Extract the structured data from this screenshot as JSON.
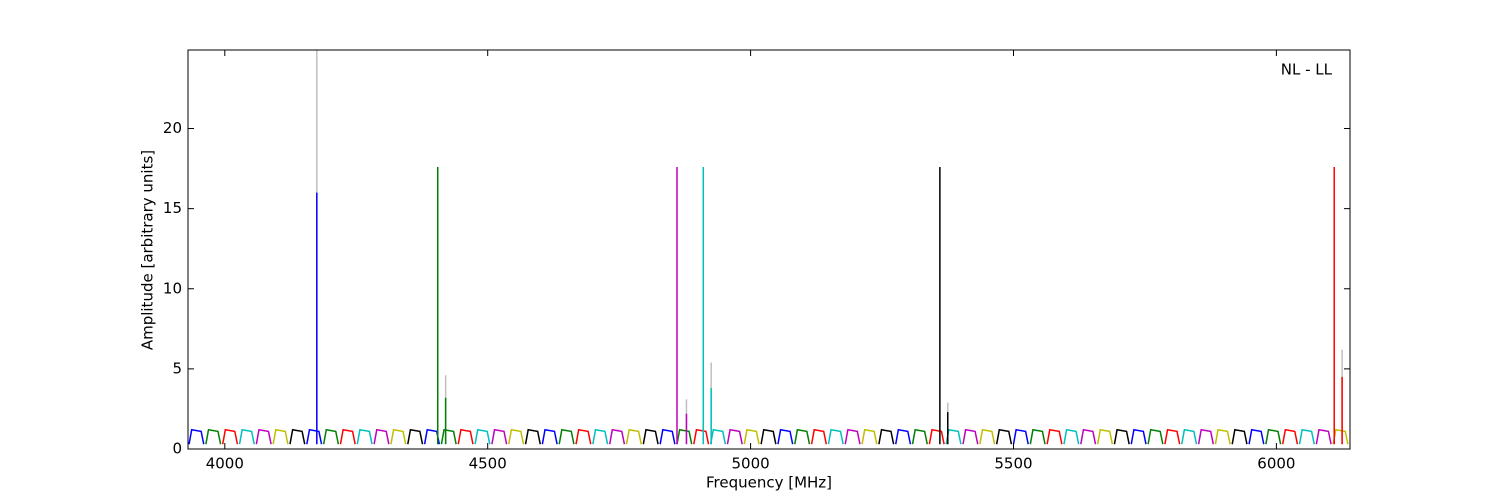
{
  "chart_data": {
    "type": "line",
    "xlabel": "Frequency [MHz]",
    "ylabel": "Amplitude [arbitrary units]",
    "annotation": "NL - LL",
    "xlim": [
      3930,
      6140
    ],
    "ylim": [
      0,
      24.9
    ],
    "xticks": [
      4000,
      4500,
      5000,
      5500,
      6000
    ],
    "yticks": [
      0,
      5,
      10,
      15,
      20
    ],
    "series": [
      {
        "color": "#bfbfbf",
        "x": [
          4175,
          4175
        ],
        "values": [
          0.3,
          24.9
        ]
      },
      {
        "color": "#bfbfbf",
        "x": [
          4420,
          4420
        ],
        "values": [
          0.3,
          4.6
        ]
      },
      {
        "color": "#bfbfbf",
        "x": [
          4878,
          4878
        ],
        "values": [
          0.3,
          3.1
        ]
      },
      {
        "color": "#bfbfbf",
        "x": [
          4925,
          4925
        ],
        "values": [
          0.3,
          5.4
        ]
      },
      {
        "color": "#bfbfbf",
        "x": [
          5375,
          5375
        ],
        "values": [
          0.3,
          2.9
        ]
      },
      {
        "color": "#bfbfbf",
        "x": [
          6125,
          6125
        ],
        "values": [
          0.3,
          6.2
        ]
      },
      {
        "color": "#0000ff",
        "x": [
          3932,
          3937,
          3955,
          3960,
          3961,
          4156,
          4161,
          4179,
          4184,
          4185,
          4380,
          4385,
          4403,
          4408,
          4409,
          4604,
          4609,
          4627,
          4632,
          4633,
          4828,
          4833,
          4851,
          4856,
          4857,
          5052,
          5057,
          5075,
          5080,
          5081,
          5276,
          5281,
          5299,
          5304,
          5305,
          5500,
          5505,
          5523,
          5528,
          5529,
          5724,
          5729,
          5747,
          5752,
          5753,
          5948,
          5953,
          5971,
          5976,
          5977
        ],
        "values": [
          0.3,
          1.2,
          1.1,
          0.3,
          null,
          0.3,
          1.2,
          1.1,
          0.3,
          null,
          0.3,
          1.2,
          1.1,
          0.3,
          null,
          0.3,
          1.2,
          1.1,
          0.3,
          null,
          0.3,
          1.2,
          1.1,
          0.3,
          null,
          0.3,
          1.2,
          1.1,
          0.3,
          null,
          0.3,
          1.2,
          1.1,
          0.3,
          null,
          0.3,
          1.2,
          1.1,
          0.3,
          null,
          0.3,
          1.2,
          1.1,
          0.3,
          null,
          0.3,
          1.2,
          1.1,
          0.3,
          null
        ]
      },
      {
        "color": "#008000",
        "x": [
          3964,
          3969,
          3987,
          3992,
          3993,
          4188,
          4193,
          4211,
          4216,
          4217,
          4412,
          4417,
          4435,
          4440,
          4441,
          4636,
          4641,
          4659,
          4664,
          4665,
          4860,
          4865,
          4883,
          4888,
          4889,
          5084,
          5089,
          5107,
          5112,
          5113,
          5308,
          5313,
          5331,
          5336,
          5337,
          5532,
          5537,
          5555,
          5560,
          5561,
          5756,
          5761,
          5779,
          5784,
          5785,
          5980,
          5985,
          6003,
          6008,
          6009
        ],
        "values": [
          0.3,
          1.2,
          1.1,
          0.3,
          null,
          0.3,
          1.2,
          1.1,
          0.3,
          null,
          0.3,
          1.2,
          1.1,
          0.3,
          null,
          0.3,
          1.2,
          1.1,
          0.3,
          null,
          0.3,
          1.2,
          1.1,
          0.3,
          null,
          0.3,
          1.2,
          1.1,
          0.3,
          null,
          0.3,
          1.2,
          1.1,
          0.3,
          null,
          0.3,
          1.2,
          1.1,
          0.3,
          null,
          0.3,
          1.2,
          1.1,
          0.3,
          null,
          0.3,
          1.2,
          1.1,
          0.3,
          null
        ]
      },
      {
        "color": "#ff0000",
        "x": [
          3996,
          4001,
          4019,
          4024,
          4025,
          4220,
          4225,
          4243,
          4248,
          4249,
          4444,
          4449,
          4467,
          4472,
          4473,
          4668,
          4673,
          4691,
          4696,
          4697,
          4892,
          4897,
          4915,
          4920,
          4921,
          5116,
          5121,
          5139,
          5144,
          5145,
          5340,
          5345,
          5363,
          5368,
          5369,
          5564,
          5569,
          5587,
          5592,
          5593,
          5788,
          5793,
          5811,
          5816,
          5817,
          6012,
          6017,
          6035,
          6040,
          6041
        ],
        "values": [
          0.3,
          1.2,
          1.1,
          0.3,
          null,
          0.3,
          1.2,
          1.1,
          0.3,
          null,
          0.3,
          1.2,
          1.1,
          0.3,
          null,
          0.3,
          1.2,
          1.1,
          0.3,
          null,
          0.3,
          1.2,
          1.1,
          0.3,
          null,
          0.3,
          1.2,
          1.1,
          0.3,
          null,
          0.3,
          1.2,
          1.1,
          0.3,
          null,
          0.3,
          1.2,
          1.1,
          0.3,
          null,
          0.3,
          1.2,
          1.1,
          0.3,
          null,
          0.3,
          1.2,
          1.1,
          0.3,
          null
        ]
      },
      {
        "color": "#00bfbf",
        "x": [
          4028,
          4033,
          4051,
          4056,
          4057,
          4252,
          4257,
          4275,
          4280,
          4281,
          4476,
          4481,
          4499,
          4504,
          4505,
          4700,
          4705,
          4723,
          4728,
          4729,
          4924,
          4929,
          4947,
          4952,
          4953,
          5148,
          5153,
          5171,
          5176,
          5177,
          5372,
          5377,
          5395,
          5400,
          5401,
          5596,
          5601,
          5619,
          5624,
          5625,
          5820,
          5825,
          5843,
          5848,
          5849,
          6044,
          6049,
          6067,
          6072,
          6073
        ],
        "values": [
          0.3,
          1.2,
          1.1,
          0.3,
          null,
          0.3,
          1.2,
          1.1,
          0.3,
          null,
          0.3,
          1.2,
          1.1,
          0.3,
          null,
          0.3,
          1.2,
          1.1,
          0.3,
          null,
          0.3,
          1.2,
          1.1,
          0.3,
          null,
          0.3,
          1.2,
          1.1,
          0.3,
          null,
          0.3,
          1.2,
          1.1,
          0.3,
          null,
          0.3,
          1.2,
          1.1,
          0.3,
          null,
          0.3,
          1.2,
          1.1,
          0.3,
          null,
          0.3,
          1.2,
          1.1,
          0.3,
          null
        ]
      },
      {
        "color": "#bf00bf",
        "x": [
          4060,
          4065,
          4083,
          4088,
          4089,
          4284,
          4289,
          4307,
          4312,
          4313,
          4508,
          4513,
          4531,
          4536,
          4537,
          4732,
          4737,
          4755,
          4760,
          4761,
          4956,
          4961,
          4979,
          4984,
          4985,
          5180,
          5185,
          5203,
          5208,
          5209,
          5404,
          5409,
          5427,
          5432,
          5433,
          5628,
          5633,
          5651,
          5656,
          5657,
          5852,
          5857,
          5875,
          5880,
          5881,
          6076,
          6081,
          6099,
          6104,
          6105
        ],
        "values": [
          0.3,
          1.2,
          1.1,
          0.3,
          null,
          0.3,
          1.2,
          1.1,
          0.3,
          null,
          0.3,
          1.2,
          1.1,
          0.3,
          null,
          0.3,
          1.2,
          1.1,
          0.3,
          null,
          0.3,
          1.2,
          1.1,
          0.3,
          null,
          0.3,
          1.2,
          1.1,
          0.3,
          null,
          0.3,
          1.2,
          1.1,
          0.3,
          null,
          0.3,
          1.2,
          1.1,
          0.3,
          null,
          0.3,
          1.2,
          1.1,
          0.3,
          null,
          0.3,
          1.2,
          1.1,
          0.3,
          null
        ]
      },
      {
        "color": "#bfbf00",
        "x": [
          4092,
          4097,
          4115,
          4120,
          4121,
          4316,
          4321,
          4339,
          4344,
          4345,
          4540,
          4545,
          4563,
          4568,
          4569,
          4764,
          4769,
          4787,
          4792,
          4793,
          4988,
          4993,
          5011,
          5016,
          5017,
          5212,
          5217,
          5235,
          5240,
          5241,
          5436,
          5441,
          5459,
          5464,
          5465,
          5660,
          5665,
          5683,
          5688,
          5689,
          5884,
          5889,
          5907,
          5912,
          5913,
          6108,
          6113,
          6131,
          6136,
          6137
        ],
        "values": [
          0.3,
          1.2,
          1.1,
          0.3,
          null,
          0.3,
          1.2,
          1.1,
          0.3,
          null,
          0.3,
          1.2,
          1.1,
          0.3,
          null,
          0.3,
          1.2,
          1.1,
          0.3,
          null,
          0.3,
          1.2,
          1.1,
          0.3,
          null,
          0.3,
          1.2,
          1.1,
          0.3,
          null,
          0.3,
          1.2,
          1.1,
          0.3,
          null,
          0.3,
          1.2,
          1.1,
          0.3,
          null,
          0.3,
          1.2,
          1.1,
          0.3,
          null,
          0.3,
          1.2,
          1.1,
          0.3,
          null
        ]
      },
      {
        "color": "#000000",
        "x": [
          4124,
          4129,
          4147,
          4152,
          4153,
          4348,
          4353,
          4371,
          4376,
          4377,
          4572,
          4577,
          4595,
          4600,
          4601,
          4796,
          4801,
          4819,
          4824,
          4825,
          5020,
          5025,
          5043,
          5048,
          5049,
          5244,
          5249,
          5267,
          5272,
          5273,
          5468,
          5473,
          5491,
          5496,
          5497,
          5692,
          5697,
          5715,
          5720,
          5721,
          5916,
          5921,
          5939,
          5944,
          5945
        ],
        "values": [
          0.3,
          1.2,
          1.1,
          0.3,
          null,
          0.3,
          1.2,
          1.1,
          0.3,
          null,
          0.3,
          1.2,
          1.1,
          0.3,
          null,
          0.3,
          1.2,
          1.1,
          0.3,
          null,
          0.3,
          1.2,
          1.1,
          0.3,
          null,
          0.3,
          1.2,
          1.1,
          0.3,
          null,
          0.3,
          1.2,
          1.1,
          0.3,
          null,
          0.3,
          1.2,
          1.1,
          0.3,
          null,
          0.3,
          1.2,
          1.1,
          0.3,
          null
        ]
      },
      {
        "color": "#0000ff",
        "x": [
          4175,
          4175
        ],
        "values": [
          0.3,
          16
        ]
      },
      {
        "color": "#008000",
        "x": [
          4405,
          4405
        ],
        "values": [
          0.3,
          17.6
        ]
      },
      {
        "color": "#008000",
        "x": [
          4420,
          4420
        ],
        "values": [
          0.3,
          3.2
        ]
      },
      {
        "color": "#bf00bf",
        "x": [
          4860,
          4860
        ],
        "values": [
          0.3,
          17.6
        ]
      },
      {
        "color": "#bf00bf",
        "x": [
          4878,
          4878
        ],
        "values": [
          0.3,
          2.2
        ]
      },
      {
        "color": "#00bfbf",
        "x": [
          4910,
          4910
        ],
        "values": [
          0.3,
          17.6
        ]
      },
      {
        "color": "#00bfbf",
        "x": [
          4925,
          4925
        ],
        "values": [
          0.3,
          3.8
        ]
      },
      {
        "color": "#000000",
        "x": [
          5360,
          5360
        ],
        "values": [
          0.3,
          17.6
        ]
      },
      {
        "color": "#000000",
        "x": [
          5375,
          5375
        ],
        "values": [
          0.3,
          2.3
        ]
      },
      {
        "color": "#ff0000",
        "x": [
          6110,
          6110
        ],
        "values": [
          0.3,
          17.6
        ]
      },
      {
        "color": "#ff0000",
        "x": [
          6125,
          6125
        ],
        "values": [
          0.3,
          4.5
        ]
      }
    ]
  }
}
